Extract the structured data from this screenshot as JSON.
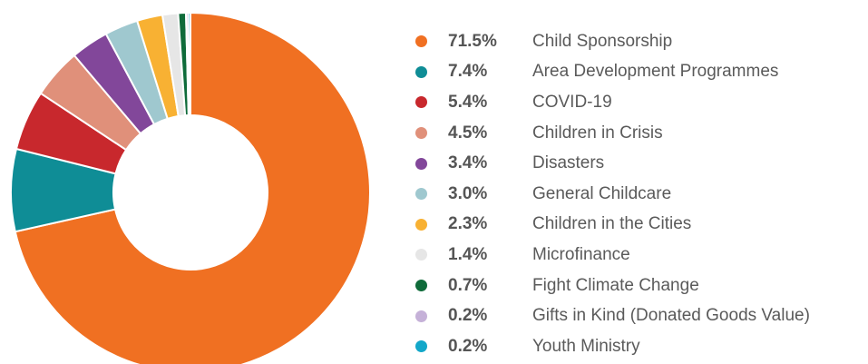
{
  "chart_data": {
    "type": "pie",
    "donut": true,
    "legend_position": "right",
    "slices": [
      {
        "label": "Child Sponsorship",
        "value": 71.5,
        "value_label": "71.5%",
        "color": "#f07022"
      },
      {
        "label": "Area Development Programmes",
        "value": 7.4,
        "value_label": "7.4%",
        "color": "#0f8d96"
      },
      {
        "label": "COVID-19",
        "value": 5.4,
        "value_label": "5.4%",
        "color": "#c8282d"
      },
      {
        "label": "Children in Crisis",
        "value": 4.5,
        "value_label": "4.5%",
        "color": "#e0907a"
      },
      {
        "label": "Disasters",
        "value": 3.4,
        "value_label": "3.4%",
        "color": "#82479a"
      },
      {
        "label": "General Childcare",
        "value": 3.0,
        "value_label": "3.0%",
        "color": "#9fc8cf"
      },
      {
        "label": "Children in the Cities",
        "value": 2.3,
        "value_label": "2.3%",
        "color": "#f8b133"
      },
      {
        "label": "Microfinance",
        "value": 1.4,
        "value_label": "1.4%",
        "color": "#e6e6e6"
      },
      {
        "label": "Fight Climate Change",
        "value": 0.7,
        "value_label": "0.7%",
        "color": "#0f6b3a"
      },
      {
        "label": "Gifts in Kind (Donated Goods Value)",
        "value": 0.2,
        "value_label": "0.2%",
        "color": "#c5b1d8"
      },
      {
        "label": "Youth Ministry",
        "value": 0.2,
        "value_label": "0.2%",
        "color": "#13a7c9"
      }
    ]
  }
}
